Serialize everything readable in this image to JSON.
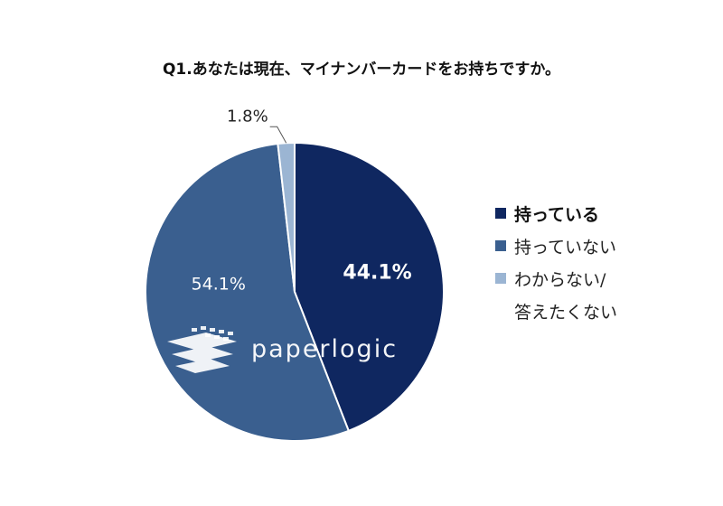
{
  "chart_data": {
    "type": "pie",
    "title": "Q1.あなたは現在、マイナンバーカードをお持ちですか。",
    "slices": [
      {
        "name": "持っている",
        "value": 44.1,
        "label": "44.1%",
        "color": "#0f2760"
      },
      {
        "name": "持っていない",
        "value": 54.1,
        "label": "54.1%",
        "color": "#3a5f8f"
      },
      {
        "name": "わからない/",
        "name2": "答えたくない",
        "value": 1.8,
        "label": "1.8%",
        "color": "#9bb5d3"
      }
    ],
    "legend_position": "right"
  },
  "watermark": {
    "text": "paperlogic"
  }
}
